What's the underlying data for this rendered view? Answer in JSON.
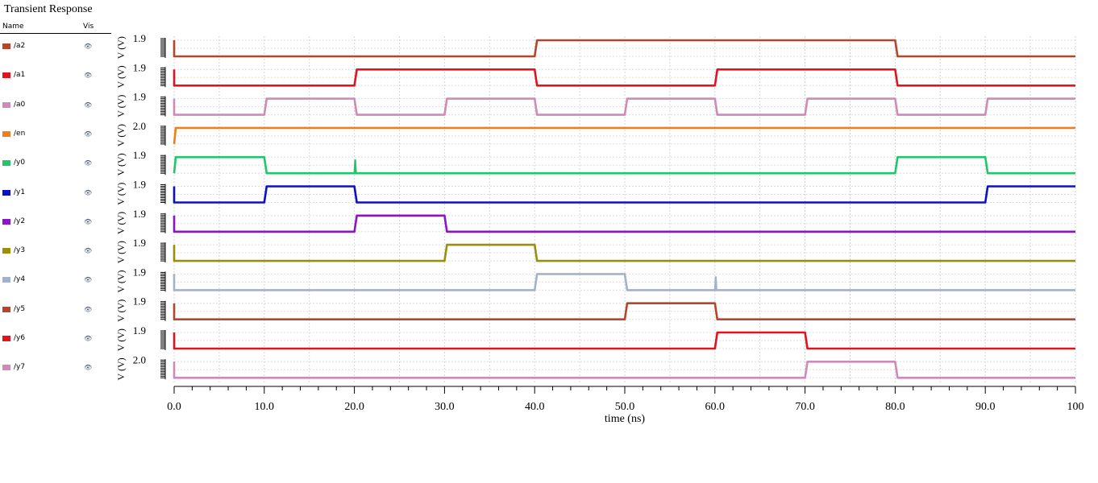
{
  "panel": {
    "title": "Transient Response",
    "col_name": "Name",
    "col_vis": "Vis",
    "vis_icon": "eye-icon"
  },
  "chart_data": {
    "type": "line",
    "xlabel": "time (ns)",
    "xlim": [
      0,
      100
    ],
    "x_ticks": [
      "0.0",
      "10.0",
      "20.0",
      "30.0",
      "40.0",
      "50.0",
      "60.0",
      "70.0",
      "80.0",
      "90.0",
      "100"
    ],
    "y_unit_label": "V (V)",
    "grid": true,
    "series": [
      {
        "name": "/a2",
        "color": "#b5462a",
        "top_tick": "1.9",
        "edges": [
          [
            0,
            0
          ],
          [
            40,
            1
          ],
          [
            80,
            0
          ]
        ]
      },
      {
        "name": "/a1",
        "color": "#e0141e",
        "top_tick": "1.9",
        "edges": [
          [
            0,
            0
          ],
          [
            20,
            1
          ],
          [
            40,
            0
          ],
          [
            60,
            1
          ],
          [
            80,
            0
          ]
        ]
      },
      {
        "name": "/a0",
        "color": "#cf8ab8",
        "top_tick": "1.9",
        "edges": [
          [
            0,
            0
          ],
          [
            10,
            1
          ],
          [
            20,
            0
          ],
          [
            30,
            1
          ],
          [
            40,
            0
          ],
          [
            50,
            1
          ],
          [
            60,
            0
          ],
          [
            70,
            1
          ],
          [
            80,
            0
          ],
          [
            90,
            1
          ]
        ]
      },
      {
        "name": "/en",
        "color": "#ef7f1a",
        "top_tick": "2.0",
        "edges": [
          [
            0,
            1
          ]
        ]
      },
      {
        "name": "/y0",
        "color": "#1ec86a",
        "top_tick": "1.9",
        "edges": [
          [
            0,
            1
          ],
          [
            10,
            0
          ],
          [
            80,
            1
          ],
          [
            90,
            0
          ]
        ],
        "glitches": [
          20
        ]
      },
      {
        "name": "/y1",
        "color": "#0c10c8",
        "top_tick": "1.9",
        "edges": [
          [
            0,
            0
          ],
          [
            10,
            1
          ],
          [
            20,
            0
          ],
          [
            90,
            1
          ]
        ]
      },
      {
        "name": "/y2",
        "color": "#8a14c8",
        "top_tick": "1.9",
        "edges": [
          [
            0,
            0
          ],
          [
            20,
            1
          ],
          [
            30,
            0
          ]
        ]
      },
      {
        "name": "/y3",
        "color": "#9a8f0a",
        "top_tick": "1.9",
        "edges": [
          [
            0,
            0
          ],
          [
            30,
            1
          ],
          [
            40,
            0
          ]
        ]
      },
      {
        "name": "/y4",
        "color": "#a2b2cc",
        "top_tick": "1.9",
        "edges": [
          [
            0,
            0
          ],
          [
            40,
            1
          ],
          [
            50,
            0
          ]
        ],
        "glitches": [
          60
        ]
      },
      {
        "name": "/y5",
        "color": "#b5462a",
        "top_tick": "1.9",
        "edges": [
          [
            0,
            0
          ],
          [
            50,
            1
          ],
          [
            60,
            0
          ]
        ]
      },
      {
        "name": "/y6",
        "color": "#e0141e",
        "top_tick": "1.9",
        "edges": [
          [
            0,
            0
          ],
          [
            60,
            1
          ],
          [
            70,
            0
          ]
        ]
      },
      {
        "name": "/y7",
        "color": "#cf8ab8",
        "top_tick": "2.0",
        "edges": [
          [
            0,
            0
          ],
          [
            70,
            1
          ],
          [
            80,
            0
          ]
        ]
      }
    ]
  }
}
